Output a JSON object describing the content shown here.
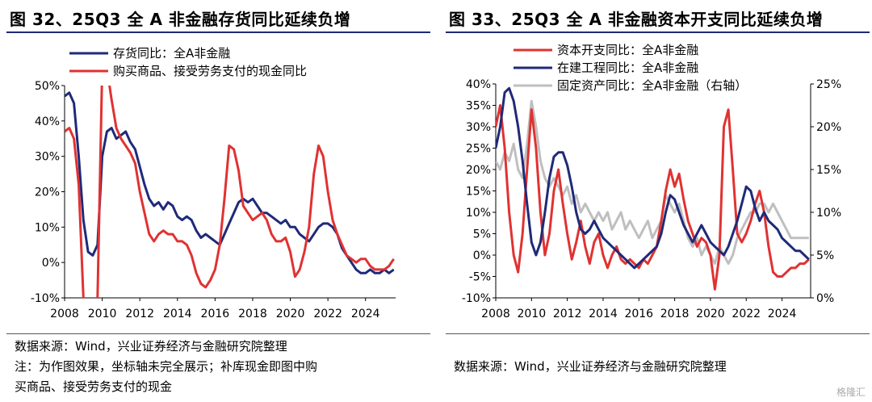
{
  "left": {
    "title": "图 32、25Q3 全 A 非金融存货同比延续负增",
    "source_lines": [
      "数据来源：Wind，兴业证券经济与金融研究院整理",
      "注：为作图效果，坐标轴未完全展示；补库现金即图中购",
      "买商品、接受劳务支付的现金"
    ]
  },
  "right": {
    "title": "图 33、25Q3 全 A 非金融资本开支同比延续负增",
    "source_lines": [
      "数据来源：Wind，兴业证券经济与金融研究院整理"
    ]
  },
  "watermark": "格隆汇",
  "chart_data": [
    {
      "type": "line",
      "title": "图 32、25Q3 全 A 非金融存货同比延续负增",
      "ylim": [
        -10,
        50
      ],
      "y_ticks": [
        "-10%",
        "0%",
        "10%",
        "20%",
        "30%",
        "40%",
        "50%"
      ],
      "y_tick_values": [
        -10,
        0,
        10,
        20,
        30,
        40,
        50
      ],
      "x_ticks": [
        "2008",
        "2010",
        "2012",
        "2014",
        "2016",
        "2018",
        "2020",
        "2022",
        "2024"
      ],
      "x_tick_values": [
        2008,
        2010,
        2012,
        2014,
        2016,
        2018,
        2020,
        2022,
        2024
      ],
      "xlim": [
        2008,
        2025.6
      ],
      "legend_position": "top-left",
      "grid": false,
      "series": [
        {
          "name": "存货同比：全A非金融",
          "color": "#1f2a78",
          "x": [
            2008.0,
            2008.25,
            2008.5,
            2008.75,
            2009.0,
            2009.25,
            2009.5,
            2009.75,
            2010.0,
            2010.25,
            2010.5,
            2010.75,
            2011.0,
            2011.25,
            2011.5,
            2011.75,
            2012.0,
            2012.25,
            2012.5,
            2012.75,
            2013.0,
            2013.25,
            2013.5,
            2013.75,
            2014.0,
            2014.25,
            2014.5,
            2014.75,
            2015.0,
            2015.25,
            2015.5,
            2015.75,
            2016.0,
            2016.25,
            2016.5,
            2016.75,
            2017.0,
            2017.25,
            2017.5,
            2017.75,
            2018.0,
            2018.25,
            2018.5,
            2018.75,
            2019.0,
            2019.25,
            2019.5,
            2019.75,
            2020.0,
            2020.25,
            2020.5,
            2020.75,
            2021.0,
            2021.25,
            2021.5,
            2021.75,
            2022.0,
            2022.25,
            2022.5,
            2022.75,
            2023.0,
            2023.25,
            2023.5,
            2023.75,
            2024.0,
            2024.25,
            2024.5,
            2024.75,
            2025.0,
            2025.25,
            2025.5
          ],
          "values": [
            47,
            48,
            45,
            30,
            12,
            3,
            2,
            5,
            30,
            37,
            38,
            35,
            36,
            37,
            34,
            32,
            27,
            22,
            18,
            16,
            17,
            15,
            17,
            16,
            13,
            12,
            13,
            12,
            9,
            7,
            8,
            7,
            6,
            5,
            8,
            11,
            14,
            17,
            18,
            17,
            18,
            16,
            14,
            14,
            13,
            12,
            11,
            12,
            10,
            10,
            8,
            7,
            6,
            8,
            10,
            11,
            11,
            10,
            8,
            4,
            2,
            0,
            -2,
            -3,
            -3,
            -2,
            -3,
            -3,
            -2,
            -3,
            -2
          ]
        },
        {
          "name": "购买商品、接受劳务支付的现金同比",
          "color": "#e03232",
          "x": [
            2008.0,
            2008.25,
            2008.5,
            2008.75,
            2009.0,
            2009.25,
            2009.5,
            2009.75,
            2010.0,
            2010.25,
            2010.5,
            2010.75,
            2011.0,
            2011.25,
            2011.5,
            2011.75,
            2012.0,
            2012.25,
            2012.5,
            2012.75,
            2013.0,
            2013.25,
            2013.5,
            2013.75,
            2014.0,
            2014.25,
            2014.5,
            2014.75,
            2015.0,
            2015.25,
            2015.5,
            2015.75,
            2016.0,
            2016.25,
            2016.5,
            2016.75,
            2017.0,
            2017.25,
            2017.5,
            2017.75,
            2018.0,
            2018.25,
            2018.5,
            2018.75,
            2019.0,
            2019.25,
            2019.5,
            2019.75,
            2020.0,
            2020.25,
            2020.5,
            2020.75,
            2021.0,
            2021.25,
            2021.5,
            2021.75,
            2022.0,
            2022.25,
            2022.5,
            2022.75,
            2023.0,
            2023.25,
            2023.5,
            2023.75,
            2024.0,
            2024.25,
            2024.5,
            2024.75,
            2025.0,
            2025.25,
            2025.5
          ],
          "values": [
            37,
            38,
            35,
            22,
            -10,
            -30,
            -30,
            -10,
            55,
            55,
            46,
            38,
            35,
            33,
            31,
            28,
            20,
            14,
            8,
            6,
            8,
            9,
            8,
            8,
            6,
            6,
            5,
            2,
            -3,
            -6,
            -7,
            -5,
            -2,
            5,
            18,
            33,
            32,
            26,
            16,
            14,
            12,
            13,
            14,
            12,
            8,
            6,
            6,
            7,
            3,
            -4,
            -2,
            3,
            10,
            25,
            33,
            30,
            20,
            12,
            8,
            5,
            2,
            1,
            0,
            1,
            1,
            -1,
            -2,
            -2,
            -2,
            -1,
            1
          ]
        }
      ]
    },
    {
      "type": "line",
      "title": "图 33、25Q3 全 A 非金融资本开支同比延续负增",
      "ylim": [
        -10,
        40
      ],
      "y_ticks": [
        "-10%",
        "-5%",
        "0%",
        "5%",
        "10%",
        "15%",
        "20%",
        "25%",
        "30%",
        "35%",
        "40%"
      ],
      "y_tick_values": [
        -10,
        -5,
        0,
        5,
        10,
        15,
        20,
        25,
        30,
        35,
        40
      ],
      "y2lim": [
        0,
        25
      ],
      "y2_ticks": [
        "0%",
        "5%",
        "10%",
        "15%",
        "20%",
        "25%"
      ],
      "y2_tick_values": [
        0,
        5,
        10,
        15,
        20,
        25
      ],
      "x_ticks": [
        "2008",
        "2010",
        "2012",
        "2014",
        "2016",
        "2018",
        "2020",
        "2022",
        "2024"
      ],
      "x_tick_values": [
        2008,
        2010,
        2012,
        2014,
        2016,
        2018,
        2020,
        2022,
        2024
      ],
      "xlim": [
        2008,
        2025.6
      ],
      "legend_position": "top-center",
      "grid": false,
      "series": [
        {
          "name": "资本开支同比：全A非金融",
          "color": "#e03232",
          "axis": "left",
          "x": [
            2008.0,
            2008.25,
            2008.5,
            2008.75,
            2009.0,
            2009.25,
            2009.5,
            2009.75,
            2010.0,
            2010.25,
            2010.5,
            2010.75,
            2011.0,
            2011.25,
            2011.5,
            2011.75,
            2012.0,
            2012.25,
            2012.5,
            2012.75,
            2013.0,
            2013.25,
            2013.5,
            2013.75,
            2014.0,
            2014.25,
            2014.5,
            2014.75,
            2015.0,
            2015.25,
            2015.5,
            2015.75,
            2016.0,
            2016.25,
            2016.5,
            2016.75,
            2017.0,
            2017.25,
            2017.5,
            2017.75,
            2018.0,
            2018.25,
            2018.5,
            2018.75,
            2019.0,
            2019.25,
            2019.5,
            2019.75,
            2020.0,
            2020.25,
            2020.5,
            2020.75,
            2021.0,
            2021.25,
            2021.5,
            2021.75,
            2022.0,
            2022.25,
            2022.5,
            2022.75,
            2023.0,
            2023.25,
            2023.5,
            2023.75,
            2024.0,
            2024.25,
            2024.5,
            2024.75,
            2025.0,
            2025.25,
            2025.5
          ],
          "values": [
            30,
            35,
            25,
            10,
            0,
            -4,
            5,
            20,
            34,
            25,
            10,
            0,
            5,
            15,
            20,
            12,
            5,
            -1,
            3,
            8,
            2,
            -2,
            3,
            5,
            0,
            -3,
            0,
            2,
            -1,
            -2,
            -1,
            -2,
            -3,
            -1,
            -2,
            0,
            2,
            8,
            15,
            20,
            16,
            19,
            13,
            8,
            5,
            2,
            4,
            3,
            0,
            -8,
            0,
            30,
            34,
            20,
            5,
            3,
            5,
            8,
            12,
            15,
            10,
            2,
            -4,
            -5,
            -5,
            -4,
            -3,
            -3,
            -2,
            -2,
            -1
          ]
        },
        {
          "name": "在建工程同比：全A非金融",
          "color": "#1f2a78",
          "axis": "left",
          "x": [
            2008.0,
            2008.25,
            2008.5,
            2008.75,
            2009.0,
            2009.25,
            2009.5,
            2009.75,
            2010.0,
            2010.25,
            2010.5,
            2010.75,
            2011.0,
            2011.25,
            2011.5,
            2011.75,
            2012.0,
            2012.25,
            2012.5,
            2012.75,
            2013.0,
            2013.25,
            2013.5,
            2013.75,
            2014.0,
            2014.25,
            2014.5,
            2014.75,
            2015.0,
            2015.25,
            2015.5,
            2015.75,
            2016.0,
            2016.25,
            2016.5,
            2016.75,
            2017.0,
            2017.25,
            2017.5,
            2017.75,
            2018.0,
            2018.25,
            2018.5,
            2018.75,
            2019.0,
            2019.25,
            2019.5,
            2019.75,
            2020.0,
            2020.25,
            2020.5,
            2020.75,
            2021.0,
            2021.25,
            2021.5,
            2021.75,
            2022.0,
            2022.25,
            2022.5,
            2022.75,
            2023.0,
            2023.25,
            2023.5,
            2023.75,
            2024.0,
            2024.25,
            2024.5,
            2024.75,
            2025.0,
            2025.25,
            2025.5
          ],
          "values": [
            25,
            30,
            38,
            39,
            36,
            30,
            22,
            12,
            3,
            0,
            3,
            10,
            18,
            23,
            24,
            24,
            21,
            16,
            10,
            6,
            5,
            6,
            8,
            6,
            4,
            3,
            2,
            1,
            0,
            -1,
            -2,
            -3,
            -2,
            -1,
            0,
            1,
            2,
            5,
            10,
            14,
            13,
            10,
            7,
            5,
            3,
            5,
            7,
            5,
            3,
            2,
            1,
            0,
            2,
            5,
            8,
            12,
            16,
            15,
            11,
            8,
            10,
            8,
            7,
            6,
            4,
            3,
            2,
            1,
            1,
            0,
            -1
          ]
        },
        {
          "name": "固定资产同比：全A非金融（右轴）",
          "color": "#bfbfbf",
          "axis": "right",
          "x": [
            2008.0,
            2008.25,
            2008.5,
            2008.75,
            2009.0,
            2009.25,
            2009.5,
            2009.75,
            2010.0,
            2010.25,
            2010.5,
            2010.75,
            2011.0,
            2011.25,
            2011.5,
            2011.75,
            2012.0,
            2012.25,
            2012.5,
            2012.75,
            2013.0,
            2013.25,
            2013.5,
            2013.75,
            2014.0,
            2014.25,
            2014.5,
            2014.75,
            2015.0,
            2015.25,
            2015.5,
            2015.75,
            2016.0,
            2016.25,
            2016.5,
            2016.75,
            2017.0,
            2017.25,
            2017.5,
            2017.75,
            2018.0,
            2018.25,
            2018.5,
            2018.75,
            2019.0,
            2019.25,
            2019.5,
            2019.75,
            2020.0,
            2020.25,
            2020.5,
            2020.75,
            2021.0,
            2021.25,
            2021.5,
            2021.75,
            2022.0,
            2022.25,
            2022.5,
            2022.75,
            2023.0,
            2023.25,
            2023.5,
            2023.75,
            2024.0,
            2024.25,
            2024.5,
            2024.75,
            2025.0,
            2025.25,
            2025.5
          ],
          "values": [
            16,
            15,
            17,
            16,
            18,
            15,
            14,
            18,
            23,
            20,
            16,
            14,
            13,
            14,
            13,
            12,
            13,
            11,
            12,
            10,
            11,
            10,
            9,
            10,
            9,
            10,
            8,
            9,
            10,
            8,
            9,
            8,
            7,
            8,
            9,
            7,
            8,
            9,
            12,
            11,
            10,
            11,
            9,
            7,
            6,
            7,
            5,
            6,
            5,
            4,
            6,
            5,
            4,
            5,
            7,
            8,
            9,
            10,
            10,
            11,
            11,
            10,
            11,
            10,
            9,
            8,
            7,
            7,
            7,
            7,
            7
          ]
        }
      ]
    }
  ]
}
